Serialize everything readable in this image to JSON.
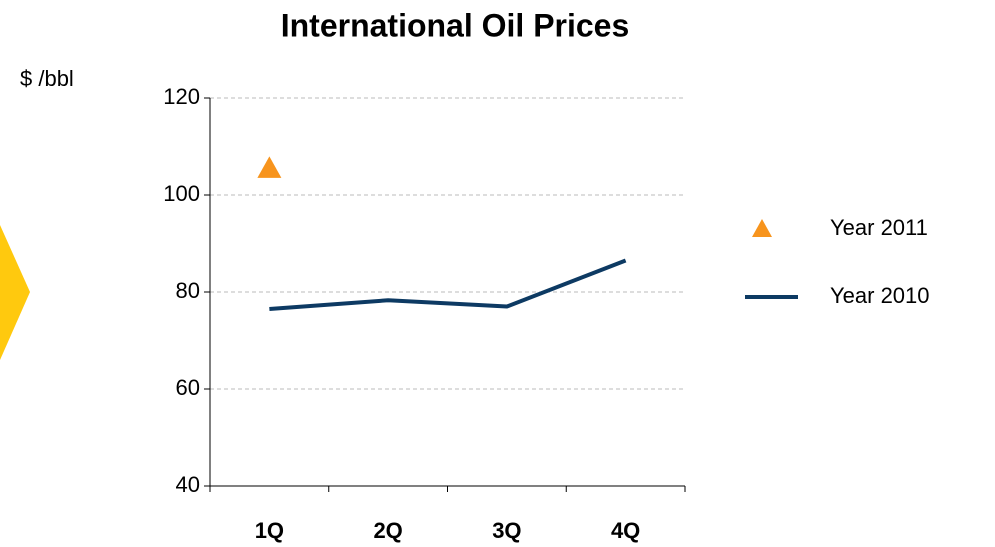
{
  "chart_data": {
    "type": "line",
    "title": "International Oil Prices",
    "y_label": "$ /bbl",
    "categories": [
      "1Q",
      "2Q",
      "3Q",
      "4Q"
    ],
    "series": [
      {
        "name": "Year 2011",
        "color": "#f7941d",
        "marker": "triangle",
        "values": [
          105.5,
          null,
          null,
          null
        ]
      },
      {
        "name": "Year 2010",
        "color": "#0d3a63",
        "values": [
          76.5,
          78.3,
          77,
          86.5
        ]
      }
    ],
    "ylim": [
      40,
      120
    ],
    "yticks": [
      40,
      60,
      80,
      100,
      120
    ],
    "grid": true,
    "legend": "right"
  }
}
